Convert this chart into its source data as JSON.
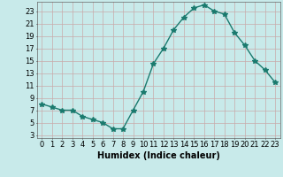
{
  "x": [
    0,
    1,
    2,
    3,
    4,
    5,
    6,
    7,
    8,
    9,
    10,
    11,
    12,
    13,
    14,
    15,
    16,
    17,
    18,
    19,
    20,
    21,
    22,
    23
  ],
  "y": [
    8,
    7.5,
    7,
    7,
    6,
    5.5,
    5,
    4,
    4,
    7,
    10,
    14.5,
    17,
    20,
    22,
    23.5,
    24,
    23,
    22.5,
    19.5,
    17.5,
    15,
    13.5,
    11.5
  ],
  "line_color": "#1a7a6e",
  "marker": "*",
  "marker_size": 4,
  "background_color": "#c8eaea",
  "grid_color": "#b0d8d8",
  "xlabel": "Humidex (Indice chaleur)",
  "xlabel_fontsize": 7,
  "xlim": [
    -0.5,
    23.5
  ],
  "ylim": [
    2.5,
    24.5
  ],
  "yticks": [
    3,
    5,
    7,
    9,
    11,
    13,
    15,
    17,
    19,
    21,
    23
  ],
  "xticks": [
    0,
    1,
    2,
    3,
    4,
    5,
    6,
    7,
    8,
    9,
    10,
    11,
    12,
    13,
    14,
    15,
    16,
    17,
    18,
    19,
    20,
    21,
    22,
    23
  ],
  "tick_fontsize": 6,
  "line_width": 1.0
}
